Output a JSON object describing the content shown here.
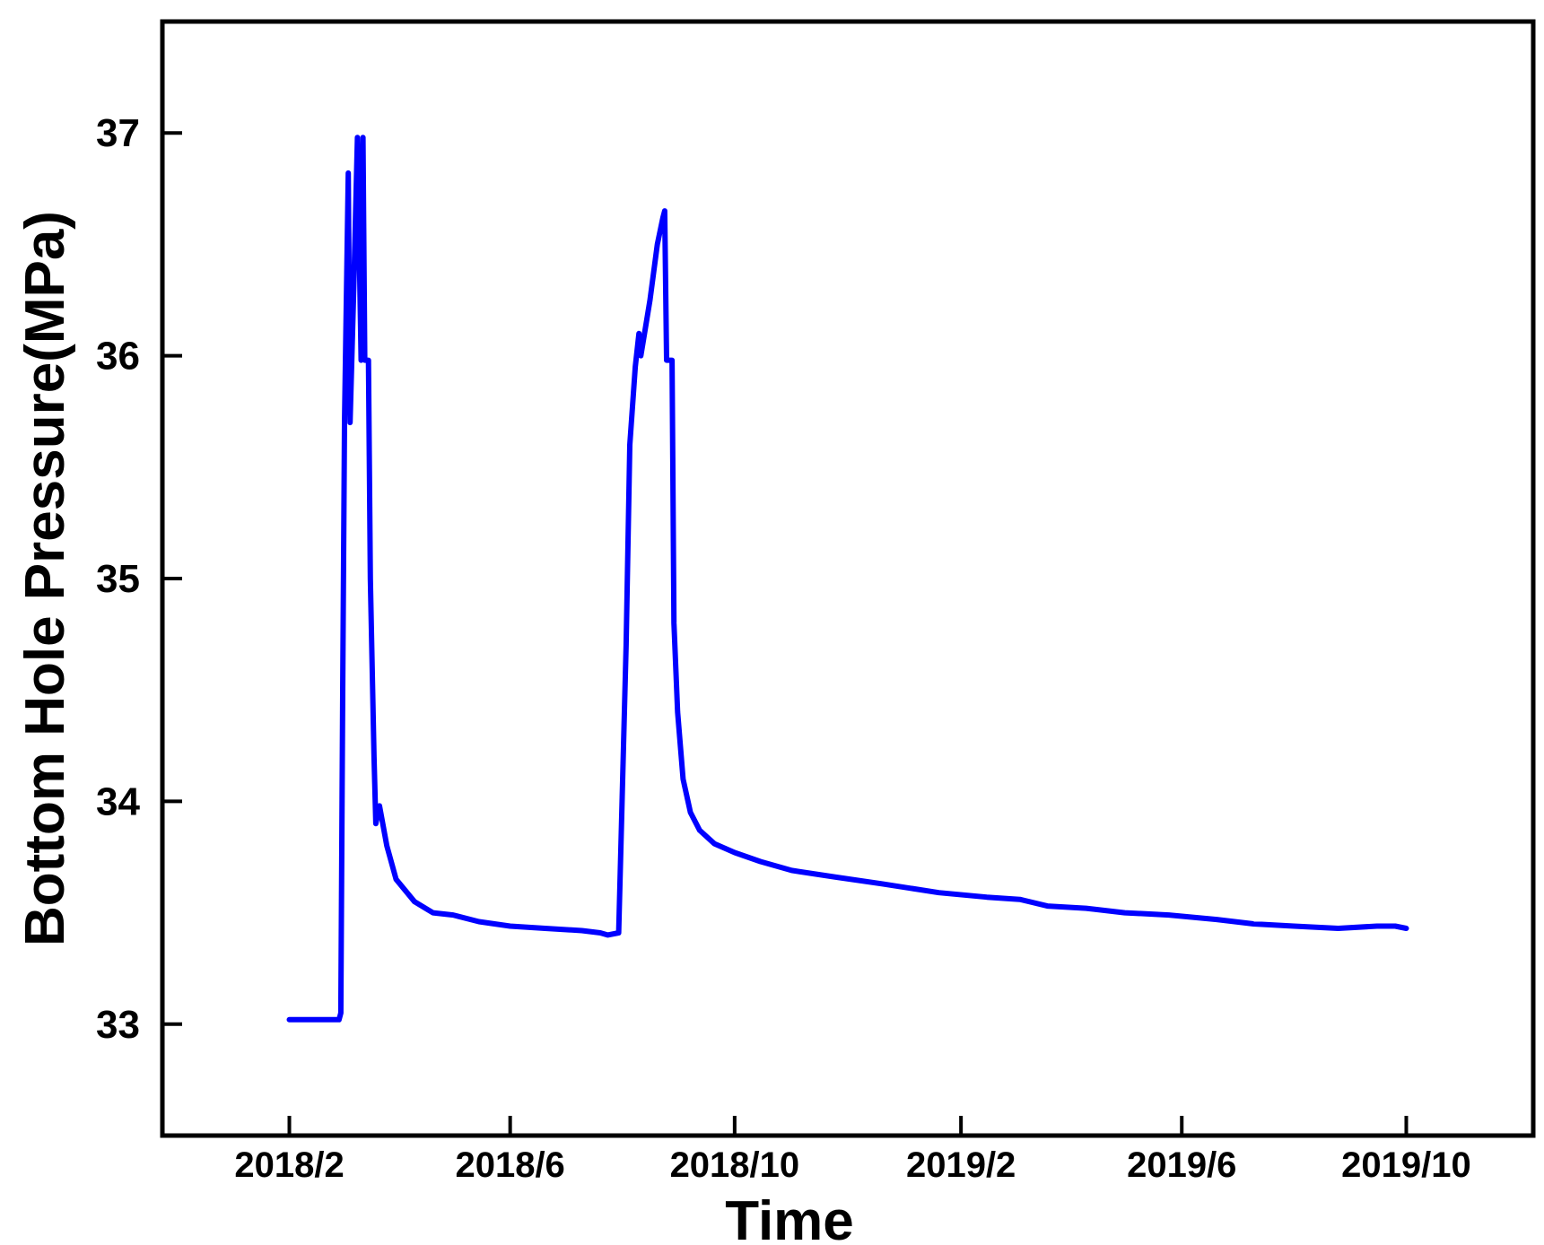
{
  "chart_data": {
    "type": "line",
    "title": "",
    "xlabel": "Time",
    "ylabel": "Bottom Hole Pressure(MPa)",
    "x_ticks": [
      "2018/2",
      "2018/6",
      "2018/10",
      "2019/2",
      "2019/6",
      "2019/10"
    ],
    "y_ticks": [
      "33",
      "34",
      "35",
      "36",
      "37"
    ],
    "xlim": [
      "2017-11-24",
      "2019-12-09"
    ],
    "ylim": [
      32.5,
      37.5
    ],
    "grid": false,
    "legend": "none",
    "series": [
      {
        "color": "#0000ff",
        "points": [
          [
            "2018-02-01",
            33.02
          ],
          [
            "2018-02-28",
            33.02
          ],
          [
            "2018-03-01",
            33.05
          ],
          [
            "2018-03-02",
            34.5
          ],
          [
            "2018-03-03",
            35.7
          ],
          [
            "2018-03-05",
            36.82
          ],
          [
            "2018-03-06",
            35.7
          ],
          [
            "2018-03-08",
            36.3
          ],
          [
            "2018-03-10",
            36.98
          ],
          [
            "2018-03-12",
            35.98
          ],
          [
            "2018-03-13",
            36.98
          ],
          [
            "2018-03-14",
            35.98
          ],
          [
            "2018-03-16",
            35.98
          ],
          [
            "2018-03-17",
            35.0
          ],
          [
            "2018-03-19",
            34.2
          ],
          [
            "2018-03-20",
            33.9
          ],
          [
            "2018-03-22",
            33.98
          ],
          [
            "2018-03-26",
            33.8
          ],
          [
            "2018-03-31",
            33.65
          ],
          [
            "2018-04-10",
            33.55
          ],
          [
            "2018-04-20",
            33.5
          ],
          [
            "2018-05-01",
            33.49
          ],
          [
            "2018-05-15",
            33.46
          ],
          [
            "2018-06-01",
            33.44
          ],
          [
            "2018-06-20",
            33.43
          ],
          [
            "2018-07-10",
            33.42
          ],
          [
            "2018-07-20",
            33.41
          ],
          [
            "2018-07-24",
            33.4
          ],
          [
            "2018-07-30",
            33.41
          ],
          [
            "2018-08-03",
            34.7
          ],
          [
            "2018-08-05",
            35.6
          ],
          [
            "2018-08-08",
            35.95
          ],
          [
            "2018-08-10",
            36.1
          ],
          [
            "2018-08-11",
            36.0
          ],
          [
            "2018-08-13",
            36.1
          ],
          [
            "2018-08-16",
            36.25
          ],
          [
            "2018-08-20",
            36.5
          ],
          [
            "2018-08-23",
            36.62
          ],
          [
            "2018-08-24",
            36.65
          ],
          [
            "2018-08-25",
            35.98
          ],
          [
            "2018-08-28",
            35.98
          ],
          [
            "2018-08-29",
            34.8
          ],
          [
            "2018-08-31",
            34.4
          ],
          [
            "2018-09-03",
            34.1
          ],
          [
            "2018-09-07",
            33.95
          ],
          [
            "2018-09-12",
            33.87
          ],
          [
            "2018-09-20",
            33.81
          ],
          [
            "2018-10-01",
            33.77
          ],
          [
            "2018-10-15",
            33.73
          ],
          [
            "2018-11-01",
            33.69
          ],
          [
            "2018-11-25",
            33.66
          ],
          [
            "2018-12-20",
            33.63
          ],
          [
            "2019-01-20",
            33.59
          ],
          [
            "2019-02-15",
            33.57
          ],
          [
            "2019-03-05",
            33.56
          ],
          [
            "2019-03-20",
            33.53
          ],
          [
            "2019-04-10",
            33.52
          ],
          [
            "2019-05-01",
            33.5
          ],
          [
            "2019-05-25",
            33.49
          ],
          [
            "2019-06-20",
            33.47
          ],
          [
            "2019-07-10",
            33.45
          ],
          [
            "2019-08-01",
            33.44
          ],
          [
            "2019-08-25",
            33.43
          ],
          [
            "2019-09-15",
            33.44
          ],
          [
            "2019-09-25",
            33.44
          ],
          [
            "2019-10-01",
            33.43
          ]
        ]
      }
    ]
  }
}
